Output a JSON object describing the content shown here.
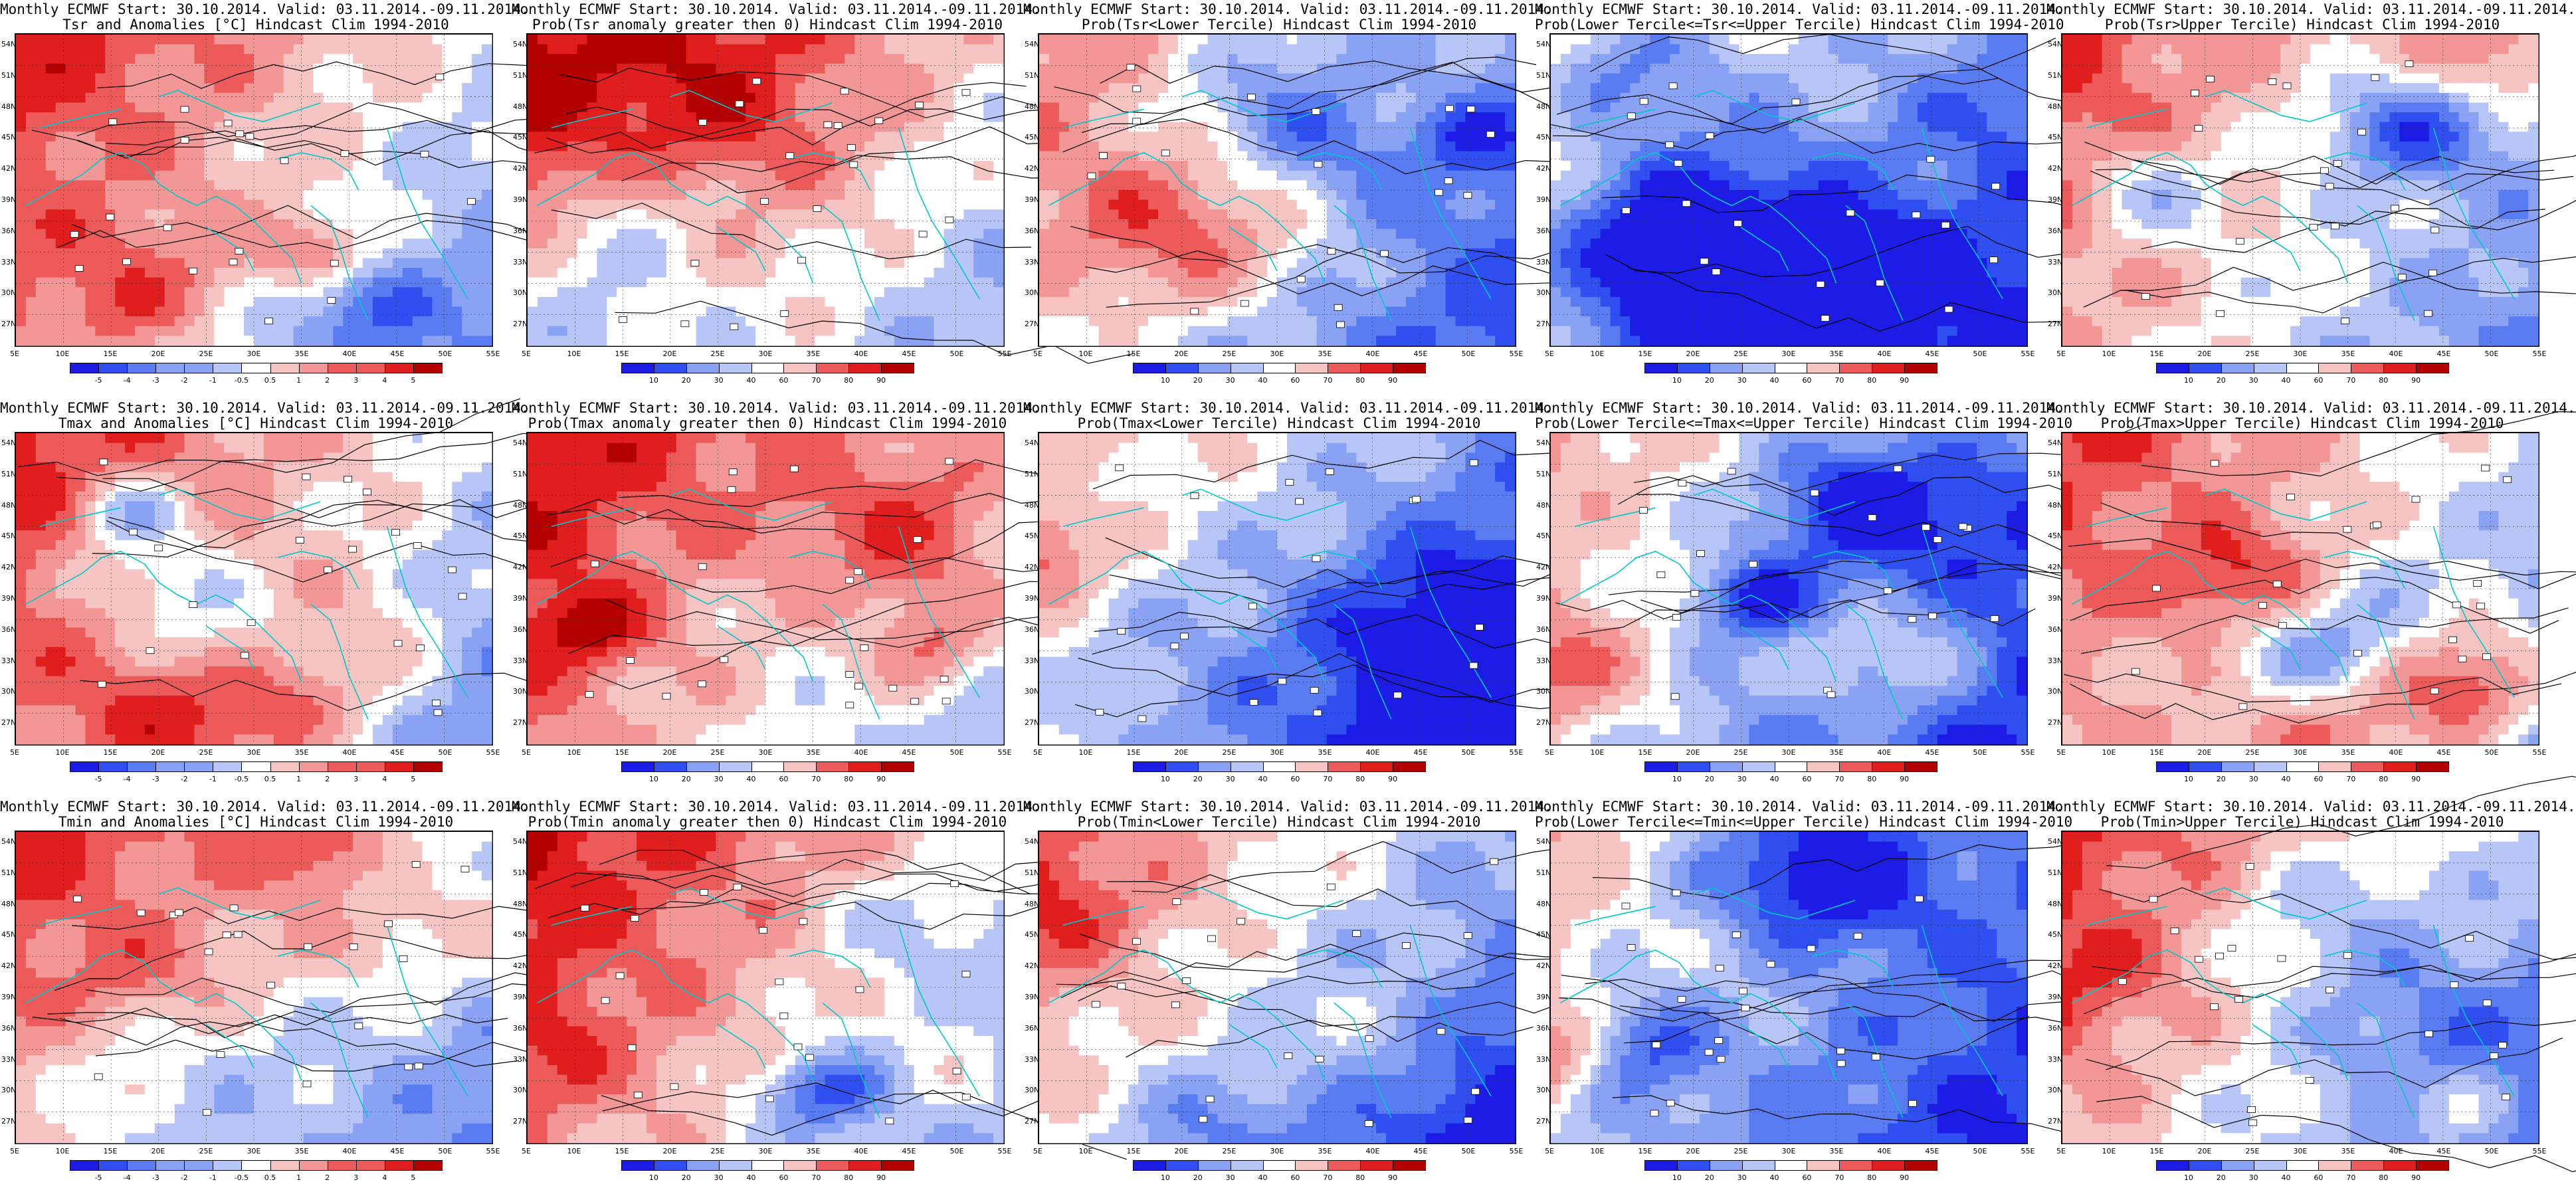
{
  "colors": {
    "palette": [
      "#1c1ce6",
      "#2f4ff0",
      "#5a7cf2",
      "#8aa2f4",
      "#b8c6f7",
      "#ffffff",
      "#f7c4c4",
      "#f29696",
      "#ec5a5a",
      "#e01e1e",
      "#b30000"
    ],
    "coast": "#00c8c8",
    "contour": "#000000"
  },
  "lat_labels": [
    "54N",
    "51N",
    "48N",
    "45N",
    "42N",
    "39N",
    "36N",
    "33N",
    "30N",
    "27N"
  ],
  "lon_labels": [
    "5E",
    "10E",
    "15E",
    "20E",
    "25E",
    "30E",
    "35E",
    "40E",
    "45E",
    "50E",
    "55E"
  ],
  "anom_ticks": [
    "-5",
    "-4",
    "-3",
    "-2",
    "-1",
    "-0.5",
    "0.5",
    "1",
    "2",
    "3",
    "4",
    "5"
  ],
  "prob_ticks": [
    "10",
    "20",
    "30",
    "40",
    "60",
    "70",
    "80",
    "90"
  ],
  "rows": [
    {
      "panels": [
        {
          "title1": "Monthly ECMWF Start: 30.10.2014. Valid: 03.11.2014.-09.11.2014.",
          "title2": "Tsr and Anomalies [°C] Hindcast Clim 1994-2010",
          "kind": "anom",
          "bias": 0.15,
          "seed": 3
        },
        {
          "title1": "Monthly ECMWF Start: 30.10.2014. Valid: 03.11.2014.-09.11.2014.",
          "title2": "Prob(Tsr anomaly greater then 0) Hindcast Clim 1994-2010",
          "kind": "prob",
          "bias": 0.3,
          "seed": 7
        },
        {
          "title1": "Monthly ECMWF Start: 30.10.2014. Valid: 03.11.2014.-09.11.2014.",
          "title2": "Prob(Tsr<Lower Tercile) Hindcast Clim 1994-2010",
          "kind": "prob",
          "bias": -0.2,
          "seed": 11
        },
        {
          "title1": "Monthly ECMWF Start: 30.10.2014. Valid: 03.11.2014.-09.11.2014.",
          "title2": "Prob(Lower Tercile<=Tsr<=Upper Tercile) Hindcast Clim 1994-2010",
          "kind": "prob",
          "bias": -0.35,
          "seed": 13
        },
        {
          "title1": "Monthly ECMWF Start: 30.10.2014. Valid: 03.11.2014.-09.11.2014.",
          "title2": "Prob(Tsr>Upper Tercile) Hindcast Clim 1994-2010",
          "kind": "prob",
          "bias": 0.1,
          "seed": 17
        }
      ]
    },
    {
      "panels": [
        {
          "title1": "Monthly ECMWF Start: 30.10.2014. Valid: 03.11.2014.-09.11.2014.",
          "title2": "Tmax and Anomalies [°C] Hindcast Clim 1994-2010",
          "kind": "anom",
          "bias": 0.1,
          "seed": 19
        },
        {
          "title1": "Monthly ECMWF Start: 30.10.2014. Valid: 03.11.2014.-09.11.2014.",
          "title2": "Prob(Tmax anomaly greater then 0) Hindcast Clim 1994-2010",
          "kind": "prob",
          "bias": 0.25,
          "seed": 23
        },
        {
          "title1": "Monthly ECMWF Start: 30.10.2014. Valid: 03.11.2014.-09.11.2014.",
          "title2": "Prob(Tmax<Lower Tercile) Hindcast Clim 1994-2010",
          "kind": "prob",
          "bias": -0.3,
          "seed": 29
        },
        {
          "title1": "Monthly ECMWF Start: 30.10.2014. Valid: 03.11.2014.-09.11.2014.",
          "title2": "Prob(Lower Tercile<=Tmax<=Upper Tercile) Hindcast Clim 1994-2010",
          "kind": "prob",
          "bias": -0.35,
          "seed": 31
        },
        {
          "title1": "Monthly ECMWF Start: 30.10.2014. Valid: 03.11.2014.-09.11.2014.",
          "title2": "Prob(Tmax>Upper Tercile) Hindcast Clim 1994-2010",
          "kind": "prob",
          "bias": 0.05,
          "seed": 37
        }
      ]
    },
    {
      "panels": [
        {
          "title1": "Monthly ECMWF Start: 30.10.2014. Valid: 03.11.2014.-09.11.2014.",
          "title2": "Tmin and Anomalies [°C] Hindcast Clim 1994-2010",
          "kind": "anom",
          "bias": 0.1,
          "seed": 41
        },
        {
          "title1": "Monthly ECMWF Start: 30.10.2014. Valid: 03.11.2014.-09.11.2014.",
          "title2": "Prob(Tmin anomaly greater then 0) Hindcast Clim 1994-2010",
          "kind": "prob",
          "bias": 0.25,
          "seed": 43
        },
        {
          "title1": "Monthly ECMWF Start: 30.10.2014. Valid: 03.11.2014.-09.11.2014.",
          "title2": "Prob(Tmin<Lower Tercile) Hindcast Clim 1994-2010",
          "kind": "prob",
          "bias": -0.15,
          "seed": 47
        },
        {
          "title1": "Monthly ECMWF Start: 30.10.2014. Valid: 03.11.2014.-09.11.2014.",
          "title2": "Prob(Lower Tercile<=Tmin<=Upper Tercile) Hindcast Clim 1994-2010",
          "kind": "prob",
          "bias": -0.35,
          "seed": 53
        },
        {
          "title1": "Monthly ECMWF Start: 30.10.2014. Valid: 03.11.2014.-09.11.2014.",
          "title2": "Prob(Tmin>Upper Tercile) Hindcast Clim 1994-2010",
          "kind": "prob",
          "bias": 0.05,
          "seed": 59
        }
      ]
    }
  ]
}
